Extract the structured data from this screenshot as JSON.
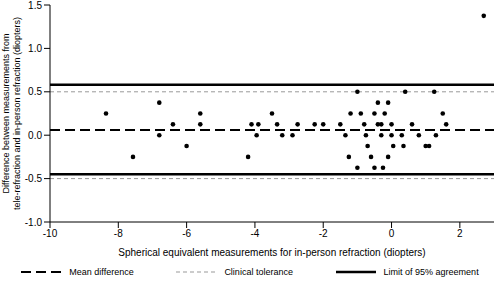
{
  "chart_data": {
    "type": "scatter",
    "x_label": "Spherical equivalent measurements for in-person refraction (diopters)",
    "y_label": [
      "Difference between measurements from",
      "tele-refraction and in-person refraction (diopters)"
    ],
    "x": [
      -8.36,
      -7.57,
      -6.8,
      -6.8,
      -6.4,
      -6.0,
      -5.6,
      -5.6,
      -4.2,
      -4.1,
      -3.95,
      -3.9,
      -3.5,
      -3.35,
      -3.2,
      -2.9,
      -2.75,
      -2.25,
      -2.0,
      -1.5,
      -1.35,
      -1.25,
      -1.2,
      -1.0,
      -1.0,
      -0.9,
      -0.8,
      -0.75,
      -0.7,
      -0.6,
      -0.5,
      -0.5,
      -0.4,
      -0.4,
      -0.3,
      -0.3,
      -0.25,
      -0.2,
      -0.1,
      -0.1,
      0.0,
      0.0,
      0.05,
      0.3,
      0.35,
      0.4,
      0.6,
      0.8,
      1.0,
      1.1,
      1.25,
      1.3,
      1.5,
      1.6,
      2.7
    ],
    "values": [
      0.25,
      -0.25,
      0.375,
      0.0,
      0.125,
      -0.125,
      0.25,
      0.125,
      -0.25,
      0.125,
      0.0,
      0.125,
      0.25,
      0.125,
      0.0,
      0.0,
      0.125,
      0.125,
      0.125,
      0.125,
      0.0,
      -0.25,
      0.25,
      0.5,
      -0.375,
      0.25,
      0.125,
      0.0,
      -0.125,
      -0.25,
      0.25,
      -0.375,
      0.375,
      0.125,
      0.125,
      0.0,
      -0.375,
      0.25,
      0.375,
      -0.25,
      0.125,
      0.0,
      -0.125,
      0.0,
      -0.125,
      0.5,
      0.125,
      0.0,
      -0.125,
      -0.125,
      0.5,
      0.0,
      0.25,
      0.125,
      1.375
    ],
    "color": "#000000",
    "marker": "circle",
    "xlim": [
      -10,
      3
    ],
    "xticks": [
      -10,
      -8,
      -6,
      -4,
      -2,
      0,
      2
    ],
    "ylim": [
      -1,
      1.5
    ],
    "yticks": [
      {
        "value": -1,
        "label": "-1.0"
      },
      -0.5,
      {
        "value": 0,
        "label": "0.0"
      },
      0.5,
      {
        "value": 1,
        "label": "1.0"
      },
      1.5
    ],
    "reference_lines": [
      {
        "name": "Mean difference",
        "values": [
          0.06
        ],
        "color": "#000000",
        "line_style": "dashed"
      },
      {
        "name": "Clinical tolerance",
        "values": [
          -0.5,
          0.5
        ],
        "color": "#999999",
        "line_style": "dashed"
      },
      {
        "name": "Limit of 95% agreement",
        "values": [
          -0.45,
          0.58
        ],
        "color": "#000000",
        "line_style": "solid"
      }
    ]
  }
}
